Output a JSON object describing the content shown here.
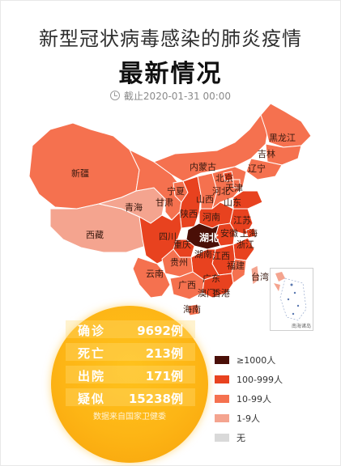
{
  "header": {
    "subtitle": "新型冠状病毒感染的肺炎疫情",
    "title": "最新情况",
    "deadline": "截止2020-01-31 00:00"
  },
  "colors": {
    "level_1000": "#4a0f07",
    "level_100": "#e8421f",
    "level_10": "#f5714f",
    "level_1": "#f4a48f",
    "level_none": "#d9d9d9",
    "stats_bg": "#fdb515"
  },
  "provinces": {
    "heilongjiang": "黑龙江",
    "jilin": "吉林",
    "liaoning": "辽宁",
    "neimenggu": "内蒙古",
    "xinjiang": "新疆",
    "xizang": "西藏",
    "qinghai": "青海",
    "gansu": "甘肃",
    "ningxia": "宁夏",
    "shaanxi": "陕西",
    "shanxi": "山西",
    "hebei": "河北",
    "beijing": "北京",
    "tianjin": "天津",
    "shandong": "山东",
    "henan": "河南",
    "jiangsu": "江苏",
    "anhui": "安徽",
    "shanghai": "上海",
    "hubei": "湖北",
    "sichuan": "四川",
    "chongqing": "重庆",
    "zhejiang": "浙江",
    "hunan": "湖南",
    "jiangxi": "江西",
    "guizhou": "贵州",
    "fujian": "福建",
    "yunnan": "云南",
    "guangxi": "广西",
    "guangdong": "广东",
    "taiwan": "台湾",
    "aomen": "澳门",
    "xianggang": "香港",
    "hainan": "海南"
  },
  "inset_label": "南海诸岛",
  "stats": [
    {
      "label": "确诊",
      "value": "9692例"
    },
    {
      "label": "死亡",
      "value": "213例"
    },
    {
      "label": "出院",
      "value": "171例"
    },
    {
      "label": "疑似",
      "value": "15238例"
    }
  ],
  "source": "数据来自国家卫健委",
  "legend": [
    {
      "label": "≥1000人",
      "color": "#4a0f07"
    },
    {
      "label": "100-999人",
      "color": "#e8421f"
    },
    {
      "label": "10-99人",
      "color": "#f5714f"
    },
    {
      "label": "1-9人",
      "color": "#f4a48f"
    },
    {
      "label": "无",
      "color": "#d9d9d9"
    }
  ]
}
